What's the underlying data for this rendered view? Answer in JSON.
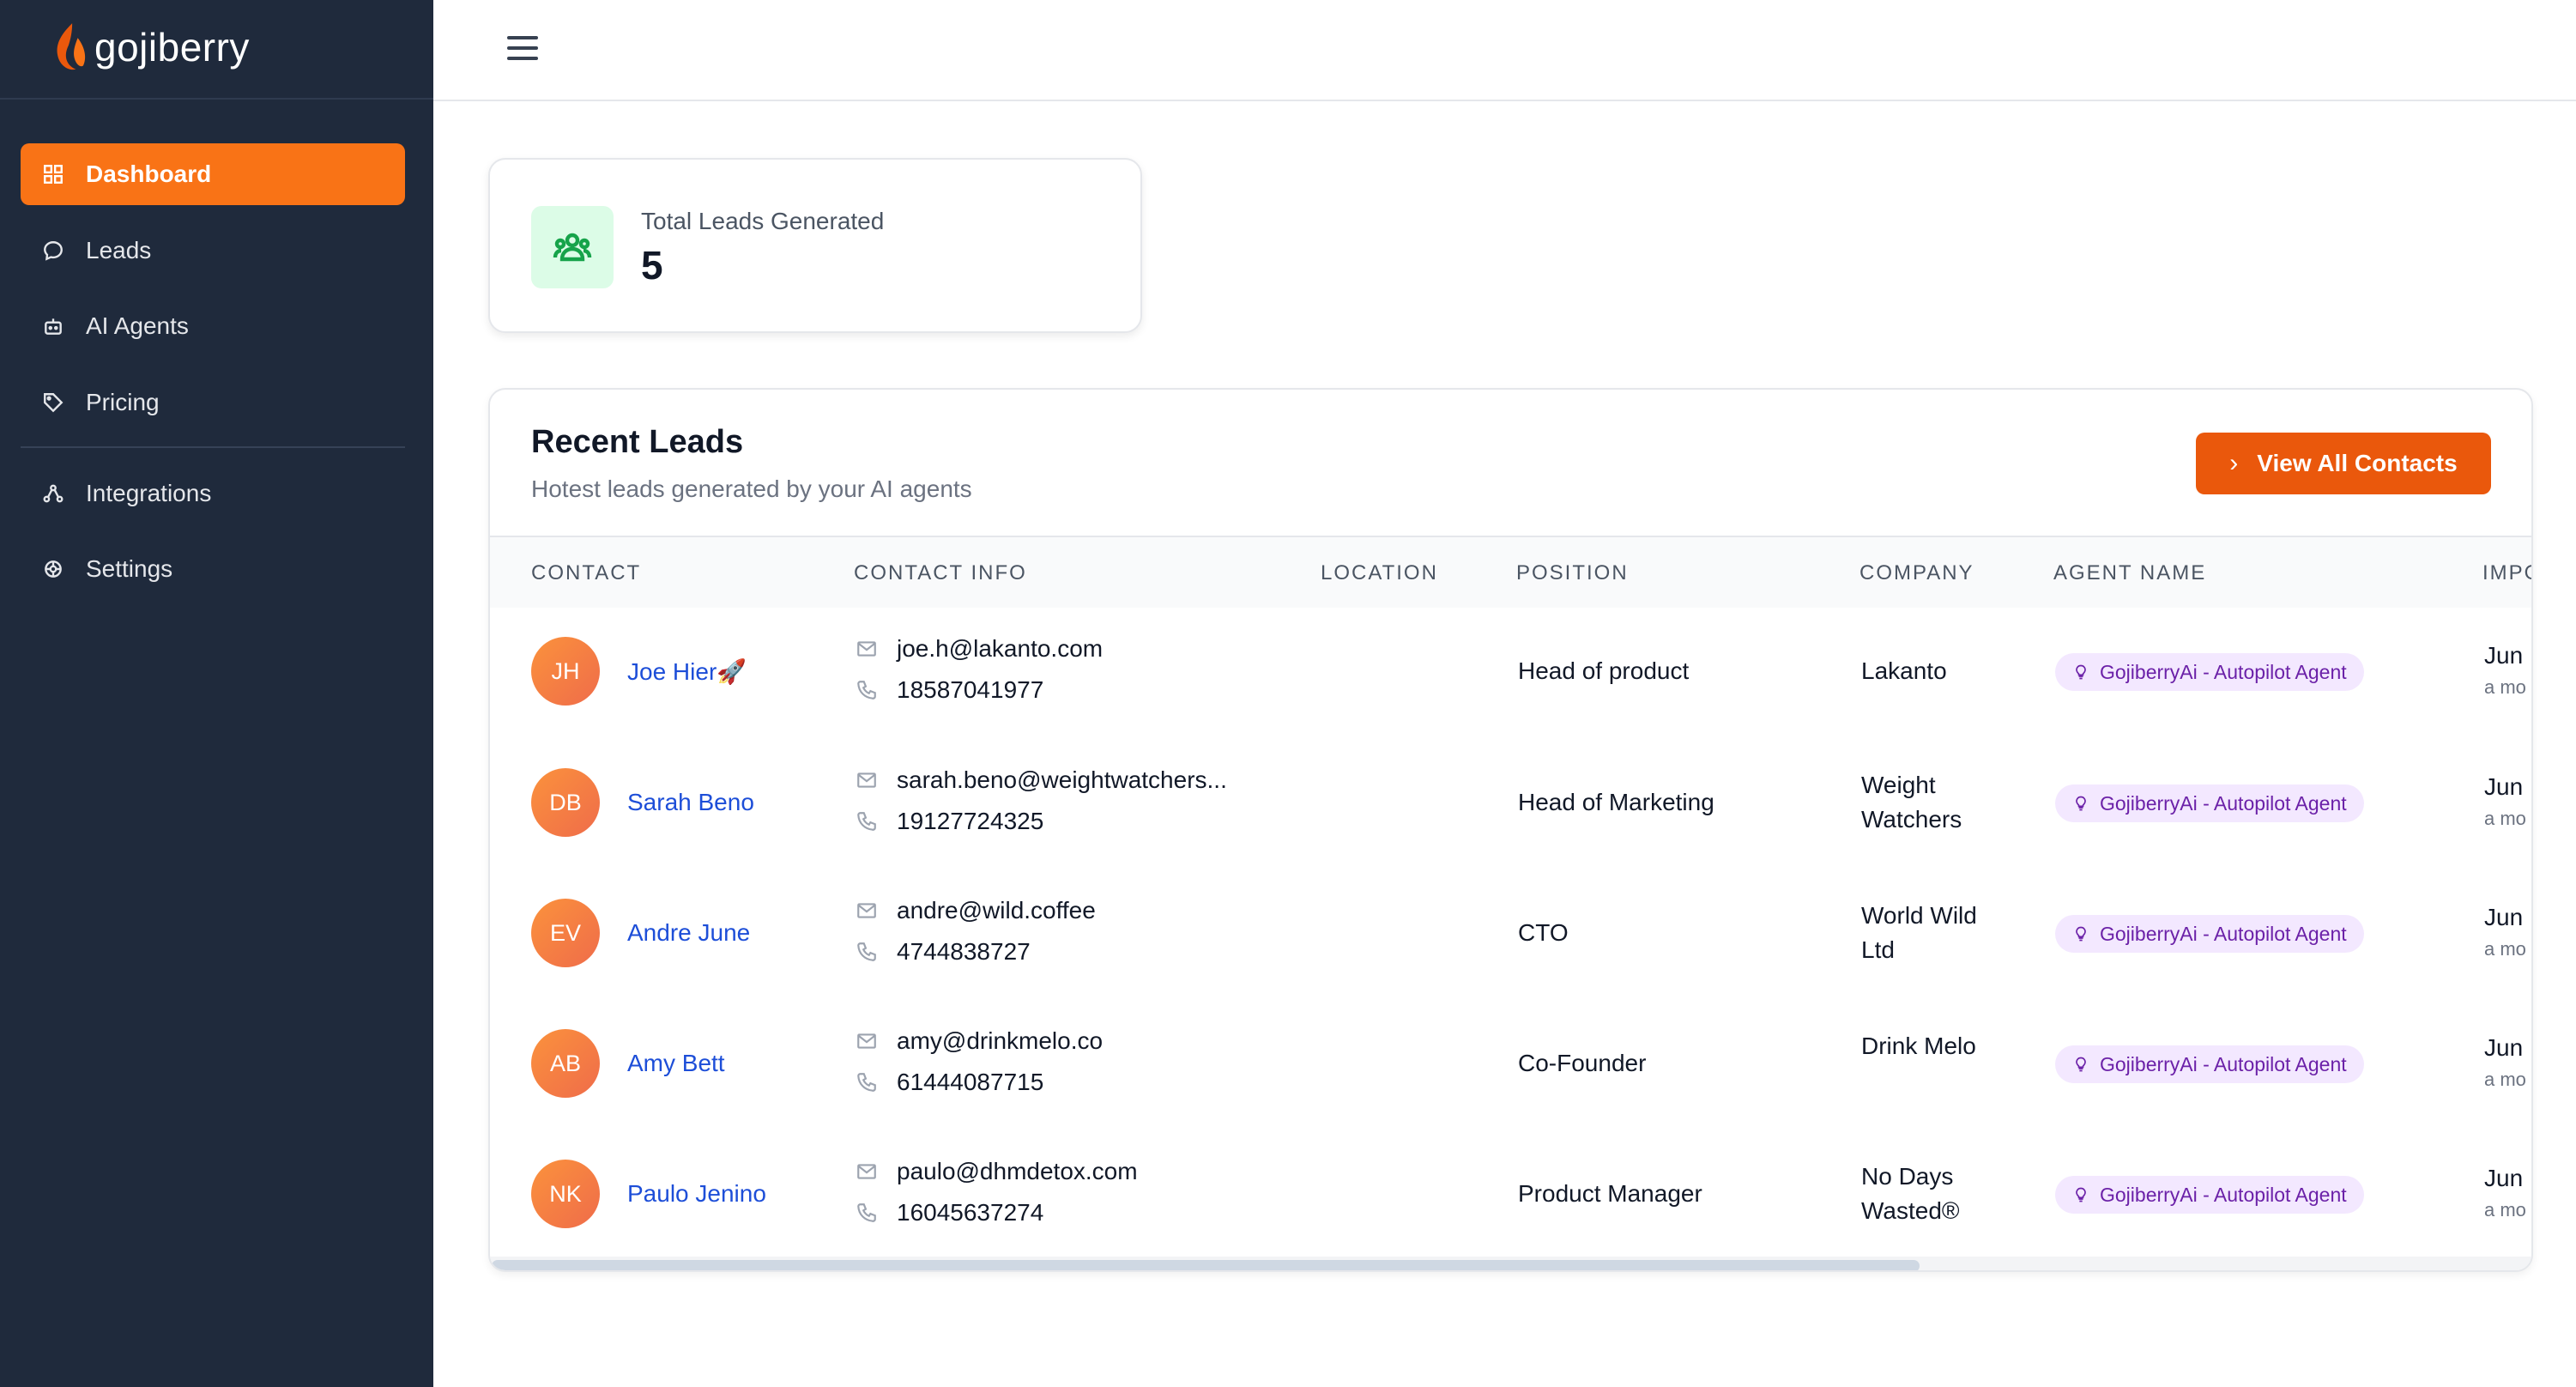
{
  "app": {
    "name": "gojiberry"
  },
  "sidebar": {
    "items": [
      {
        "label": "Dashboard",
        "icon": "dashboard-icon",
        "active": true
      },
      {
        "label": "Leads",
        "icon": "chat-icon"
      },
      {
        "label": "AI Agents",
        "icon": "robot-icon"
      },
      {
        "label": "Pricing",
        "icon": "tag-icon"
      },
      {
        "label": "Integrations",
        "icon": "integrations-icon"
      },
      {
        "label": "Settings",
        "icon": "settings-icon"
      }
    ]
  },
  "topbar": {
    "menu_icon": "hamburger-icon"
  },
  "stats": {
    "label": "Total Leads Generated",
    "value": "5",
    "icon": "users-icon"
  },
  "leads_panel": {
    "title": "Recent Leads",
    "subtitle": "Hotest leads generated by your AI agents",
    "view_all_label": "View All Contacts",
    "columns": [
      "CONTACT",
      "CONTACT INFO",
      "LOCATION",
      "POSITION",
      "COMPANY",
      "AGENT NAME",
      "IMPO"
    ],
    "rows": [
      {
        "initials": "JH",
        "name": "Joe Hier🚀",
        "email": "joe.h@lakanto.com",
        "phone": "18587041977",
        "location": "",
        "position": "Head of product",
        "company": "Lakanto",
        "agent": "GojiberryAi - Autopilot Agent",
        "imported": "Jun",
        "imported_rel": "a mo"
      },
      {
        "initials": "DB",
        "name": "Sarah Beno",
        "email": "sarah.beno@weightwatchers...",
        "phone": "19127724325",
        "location": "",
        "position": "Head of Marketing",
        "company": "Weight Watchers",
        "agent": "GojiberryAi - Autopilot Agent",
        "imported": "Jun",
        "imported_rel": "a mo"
      },
      {
        "initials": "EV",
        "name": "Andre June",
        "email": "andre@wild.coffee",
        "phone": "4744838727",
        "location": "",
        "position": "CTO",
        "company": "World Wild Ltd",
        "agent": "GojiberryAi - Autopilot Agent",
        "imported": "Jun",
        "imported_rel": "a mo"
      },
      {
        "initials": "AB",
        "name": "Amy Bett",
        "email": "amy@drinkmelo.co",
        "phone": "61444087715",
        "location": "",
        "position": "Co-Founder",
        "company": "Drink Melo",
        "agent": "GojiberryAi - Autopilot Agent",
        "imported": "Jun",
        "imported_rel": "a mo"
      },
      {
        "initials": "NK",
        "name": "Paulo Jenino",
        "email": "paulo@dhmdetox.com",
        "phone": "16045637274",
        "location": "",
        "position": "Product Manager",
        "company": "No Days Wasted®",
        "agent": "GojiberryAi - Autopilot Agent",
        "imported": "Jun",
        "imported_rel": "a mo"
      }
    ]
  },
  "colors": {
    "sidebar_bg": "#1f2a3c",
    "accent": "#f97316",
    "button": "#ea580c",
    "link": "#1d4ed8",
    "badge_bg": "#f3e8ff",
    "badge_text": "#6b21a8"
  }
}
